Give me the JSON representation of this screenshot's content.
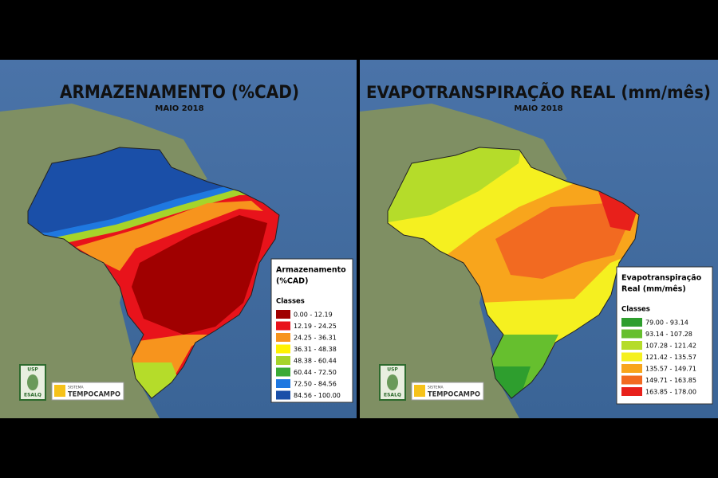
{
  "maps": [
    {
      "title": "ARMAZENAMENTO (%CAD)",
      "subtitle": "MAIO 2018",
      "legend": {
        "title_lines": [
          "Armazenamento",
          "(%CAD)"
        ],
        "heading": "Classes",
        "classes": [
          {
            "label": "0.00 - 12.19",
            "color": "#a00000"
          },
          {
            "label": "12.19 - 24.25",
            "color": "#e8131b"
          },
          {
            "label": "24.25 - 36.31",
            "color": "#f7941d"
          },
          {
            "label": "36.31 - 48.38",
            "color": "#fff200"
          },
          {
            "label": "48.38 - 60.44",
            "color": "#a6d42a"
          },
          {
            "label": "60.44 - 72.50",
            "color": "#3aaa35"
          },
          {
            "label": "72.50 - 84.56",
            "color": "#1f78e0"
          },
          {
            "label": "84.56 - 100.00",
            "color": "#1a4fa8"
          }
        ]
      }
    },
    {
      "title": "EVAPOTRANSPIRAÇÃO REAL (mm/mês)",
      "subtitle": "MAIO 2018",
      "legend": {
        "title_lines": [
          "Evapotranspiração",
          "Real (mm/mês)"
        ],
        "heading": "Classes",
        "classes": [
          {
            "label": "79.00 - 93.14",
            "color": "#2e9e2e"
          },
          {
            "label": "93.14 - 107.28",
            "color": "#66bf2e"
          },
          {
            "label": "107.28 - 121.42",
            "color": "#b5dc2a"
          },
          {
            "label": "121.42 - 135.57",
            "color": "#f5f020"
          },
          {
            "label": "135.57 - 149.71",
            "color": "#f8a51c"
          },
          {
            "label": "149.71 - 163.85",
            "color": "#f26a21"
          },
          {
            "label": "163.85 - 178.00",
            "color": "#e8201b"
          }
        ]
      }
    }
  ],
  "logos": {
    "usp": "USP",
    "esalq": "ESALQ",
    "system": "SISTEMA",
    "brand": "TEMPOCAMPO"
  }
}
